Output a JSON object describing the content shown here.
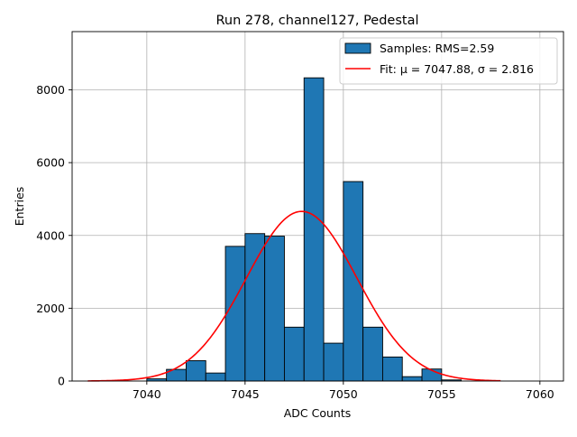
{
  "chart_data": {
    "type": "bar",
    "title": "Run 278, channel127, Pedestal",
    "xlabel": "ADC Counts",
    "ylabel": "Entries",
    "xlim": [
      7036.2,
      7061.2
    ],
    "ylim": [
      0,
      9600
    ],
    "x_ticks": [
      7040,
      7045,
      7050,
      7055,
      7060
    ],
    "y_ticks": [
      0,
      2000,
      4000,
      6000,
      8000
    ],
    "grid": true,
    "legend_position": "top-right",
    "histogram": {
      "name": "Samples: RMS=2.59",
      "color": "#1f77b4",
      "bin_width": 1,
      "bin_lefts": [
        7040,
        7041,
        7042,
        7043,
        7044,
        7045,
        7046,
        7047,
        7048,
        7049,
        7050,
        7051,
        7052,
        7053,
        7054,
        7055
      ],
      "values": [
        60,
        320,
        560,
        220,
        3700,
        4050,
        3980,
        1480,
        8330,
        1040,
        5480,
        1480,
        660,
        120,
        330,
        30
      ]
    },
    "fit": {
      "name": "Fit: μ = 7047.88, σ = 2.816",
      "color": "#ff0000",
      "mu": 7047.88,
      "sigma": 2.816,
      "amplitude": 4660,
      "x_range": [
        7037,
        7058
      ]
    }
  }
}
